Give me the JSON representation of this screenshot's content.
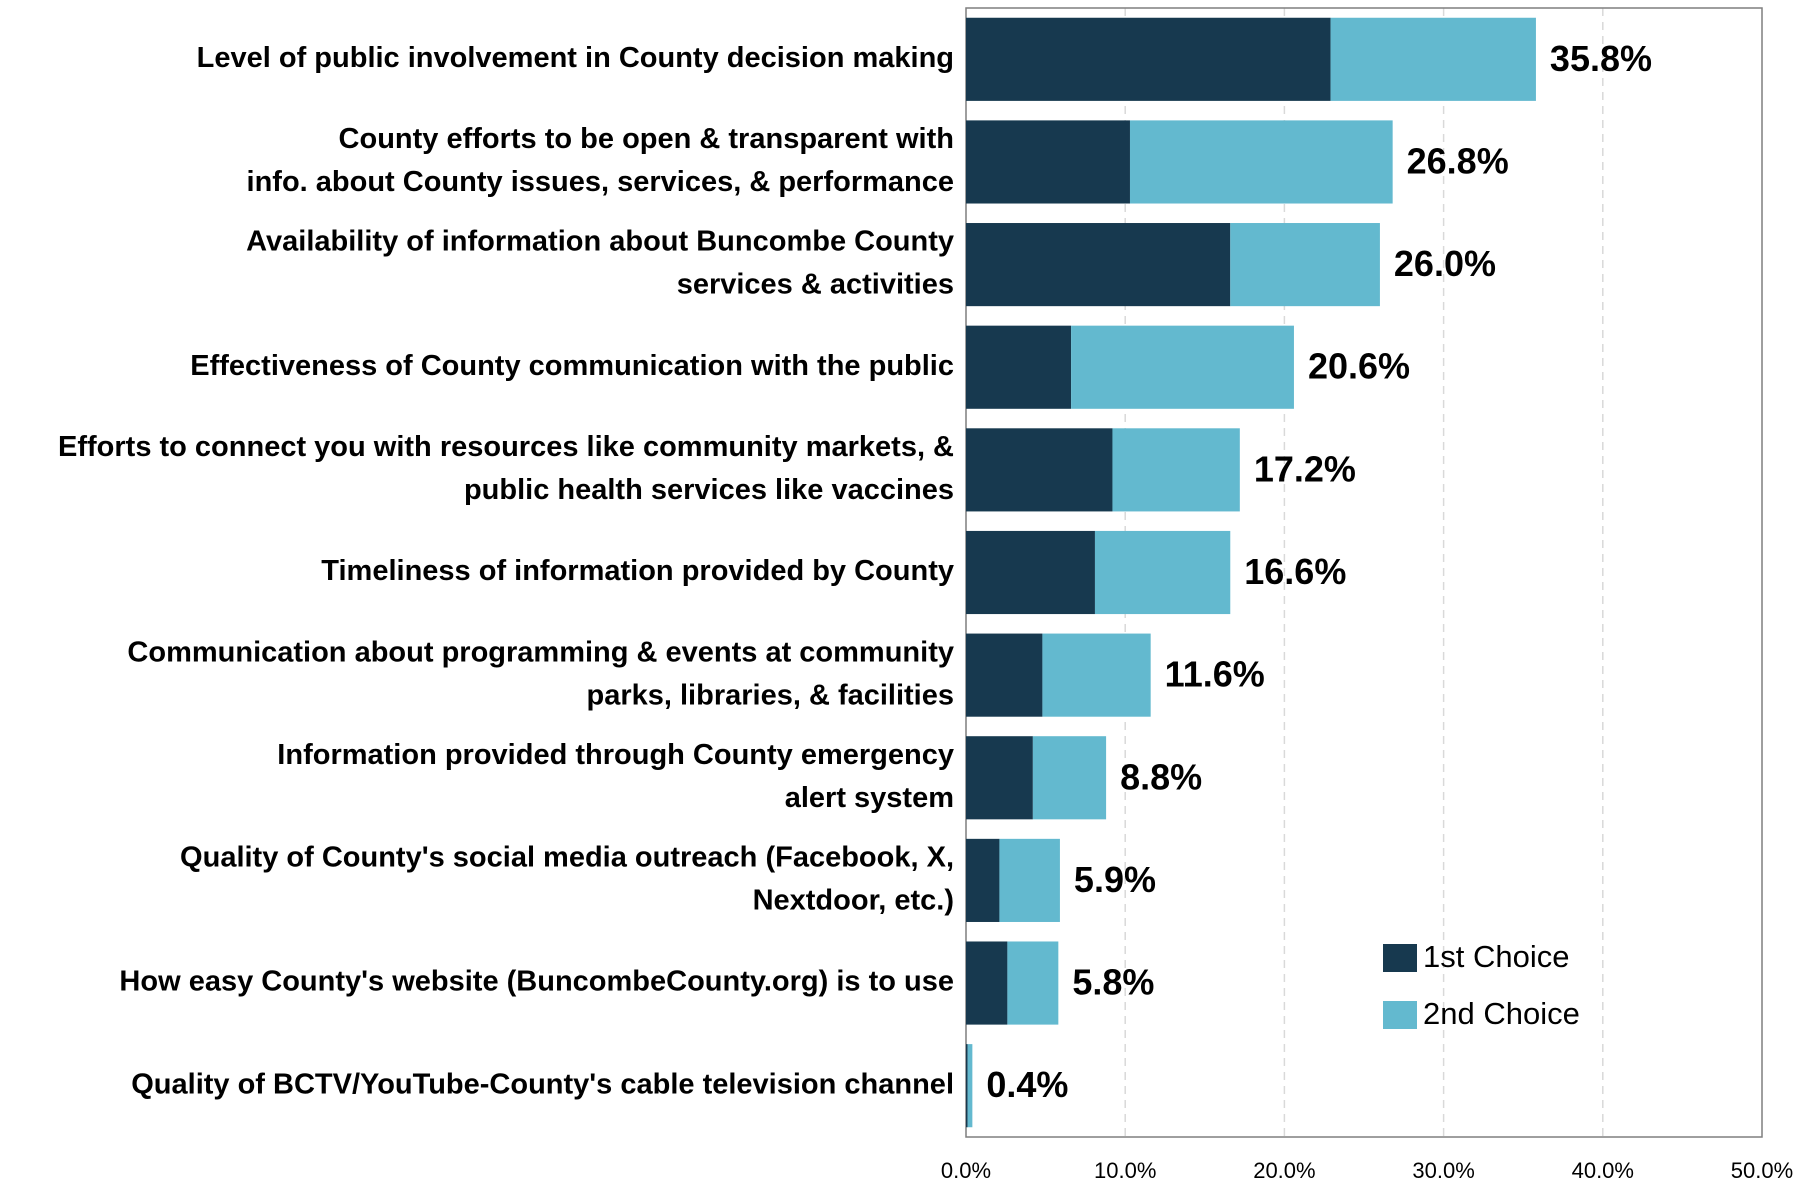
{
  "chart_data": {
    "type": "stacked_barh",
    "categories": [
      [
        "Level of public involvement in County decision making"
      ],
      [
        "County efforts to be open & transparent with",
        "info. about County issues, services, & performance"
      ],
      [
        "Availability of information about Buncombe County",
        "services & activities"
      ],
      [
        "Effectiveness of County communication with the public"
      ],
      [
        "Efforts to connect you with resources like community markets, &",
        "public health services like vaccines"
      ],
      [
        "Timeliness of information provided by County"
      ],
      [
        "Communication about programming & events at community",
        "parks, libraries, & facilities"
      ],
      [
        "Information provided through County emergency",
        "alert system"
      ],
      [
        "Quality of County's social media outreach (Facebook, X,",
        "Nextdoor, etc.)"
      ],
      [
        "How easy County's website (BuncombeCounty.org) is to use"
      ],
      [
        "Quality of BCTV/YouTube-County's cable television channel"
      ]
    ],
    "series": [
      {
        "name": "1st Choice",
        "color": "#17394f",
        "values": [
          22.9,
          10.3,
          16.6,
          6.6,
          9.2,
          8.1,
          4.8,
          4.2,
          2.1,
          2.6,
          0.1
        ]
      },
      {
        "name": "2nd Choice",
        "color": "#63b9cf",
        "values": [
          12.9,
          16.5,
          9.4,
          14.0,
          8.0,
          8.5,
          6.8,
          4.6,
          3.8,
          3.2,
          0.3
        ]
      }
    ],
    "totals": [
      35.8,
      26.8,
      26.0,
      20.6,
      17.2,
      16.6,
      11.6,
      8.8,
      5.9,
      5.8,
      0.4
    ],
    "value_labels": [
      "35.8%",
      "26.8%",
      "26.0%",
      "20.6%",
      "17.2%",
      "16.6%",
      "11.6%",
      "8.8%",
      "5.9%",
      "5.8%",
      "0.4%"
    ],
    "xlim": [
      0,
      50
    ],
    "xticks": [
      {
        "value": 0,
        "label": "0.0%"
      },
      {
        "value": 10,
        "label": "10.0%"
      },
      {
        "value": 20,
        "label": "20.0%"
      },
      {
        "value": 30,
        "label": "30.0%"
      },
      {
        "value": 40,
        "label": "40.0%"
      },
      {
        "value": 50,
        "label": "50.0%"
      }
    ],
    "grid": true,
    "legend": "lower right"
  }
}
